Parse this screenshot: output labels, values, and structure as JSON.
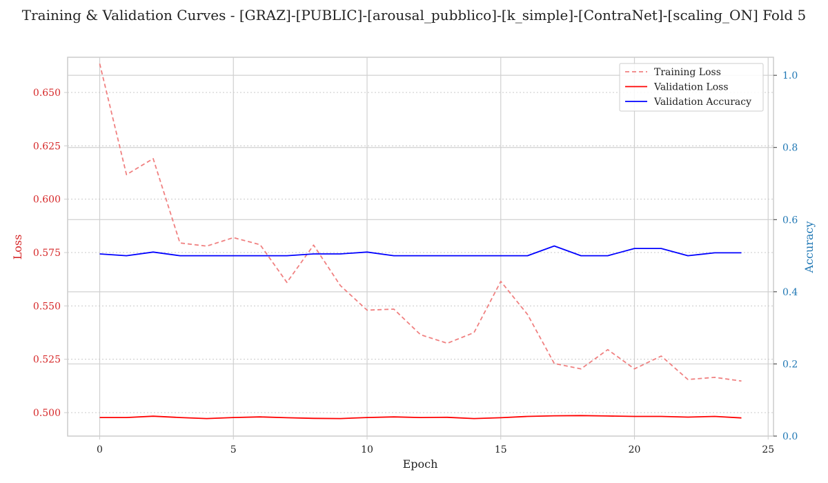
{
  "chart_data": {
    "type": "line",
    "title": "Training & Validation Curves - [GRAZ]-[PUBLIC]-[arousal_pubblico]-[k_simple]-[ContraNet]-[scaling_ON] Fold 5",
    "xlabel": "Epoch",
    "ylabel_left": "Loss",
    "ylabel_right": "Accuracy",
    "xlim": [
      -1.2,
      25.2
    ],
    "ylim_left": [
      0.489,
      0.6665
    ],
    "ylim_right": [
      0.0,
      1.05
    ],
    "x_ticks": [
      0,
      5,
      10,
      15,
      20,
      25
    ],
    "y_ticks_left": [
      0.5,
      0.525,
      0.55,
      0.575,
      0.6,
      0.625,
      0.65
    ],
    "y_ticks_right": [
      0.0,
      0.2,
      0.4,
      0.6,
      0.8,
      1.0
    ],
    "grid": true,
    "legend_position": "top-right",
    "x": [
      0,
      1,
      2,
      3,
      4,
      5,
      6,
      7,
      8,
      9,
      10,
      11,
      12,
      13,
      14,
      15,
      16,
      17,
      18,
      19,
      20,
      21,
      22,
      23,
      24
    ],
    "series": [
      {
        "name": "Training Loss",
        "axis": "left",
        "color": "#f08080",
        "style": "dashed",
        "values": [
          0.6635,
          0.6115,
          0.619,
          0.5795,
          0.578,
          0.582,
          0.5787,
          0.561,
          0.5785,
          0.5595,
          0.548,
          0.5485,
          0.5365,
          0.5325,
          0.5375,
          0.5615,
          0.546,
          0.523,
          0.5205,
          0.5295,
          0.5205,
          0.5265,
          0.5155,
          0.5165,
          0.5148
        ]
      },
      {
        "name": "Validation Loss",
        "axis": "left",
        "color": "#ff0000",
        "style": "solid",
        "values": [
          0.4977,
          0.4977,
          0.4983,
          0.4977,
          0.4972,
          0.4977,
          0.498,
          0.4976,
          0.4973,
          0.4972,
          0.4977,
          0.498,
          0.4977,
          0.4978,
          0.4972,
          0.4976,
          0.4982,
          0.4985,
          0.4986,
          0.4984,
          0.4982,
          0.4982,
          0.4979,
          0.4982,
          0.4975
        ]
      },
      {
        "name": "Validation Accuracy",
        "axis": "right",
        "color": "#0000ff",
        "style": "solid",
        "values": [
          0.505,
          0.5,
          0.51,
          0.5,
          0.5,
          0.5,
          0.5,
          0.5,
          0.505,
          0.505,
          0.51,
          0.5,
          0.5,
          0.5,
          0.5,
          0.5,
          0.5,
          0.527,
          0.5,
          0.5,
          0.52,
          0.52,
          0.5,
          0.508,
          0.508
        ]
      }
    ]
  }
}
